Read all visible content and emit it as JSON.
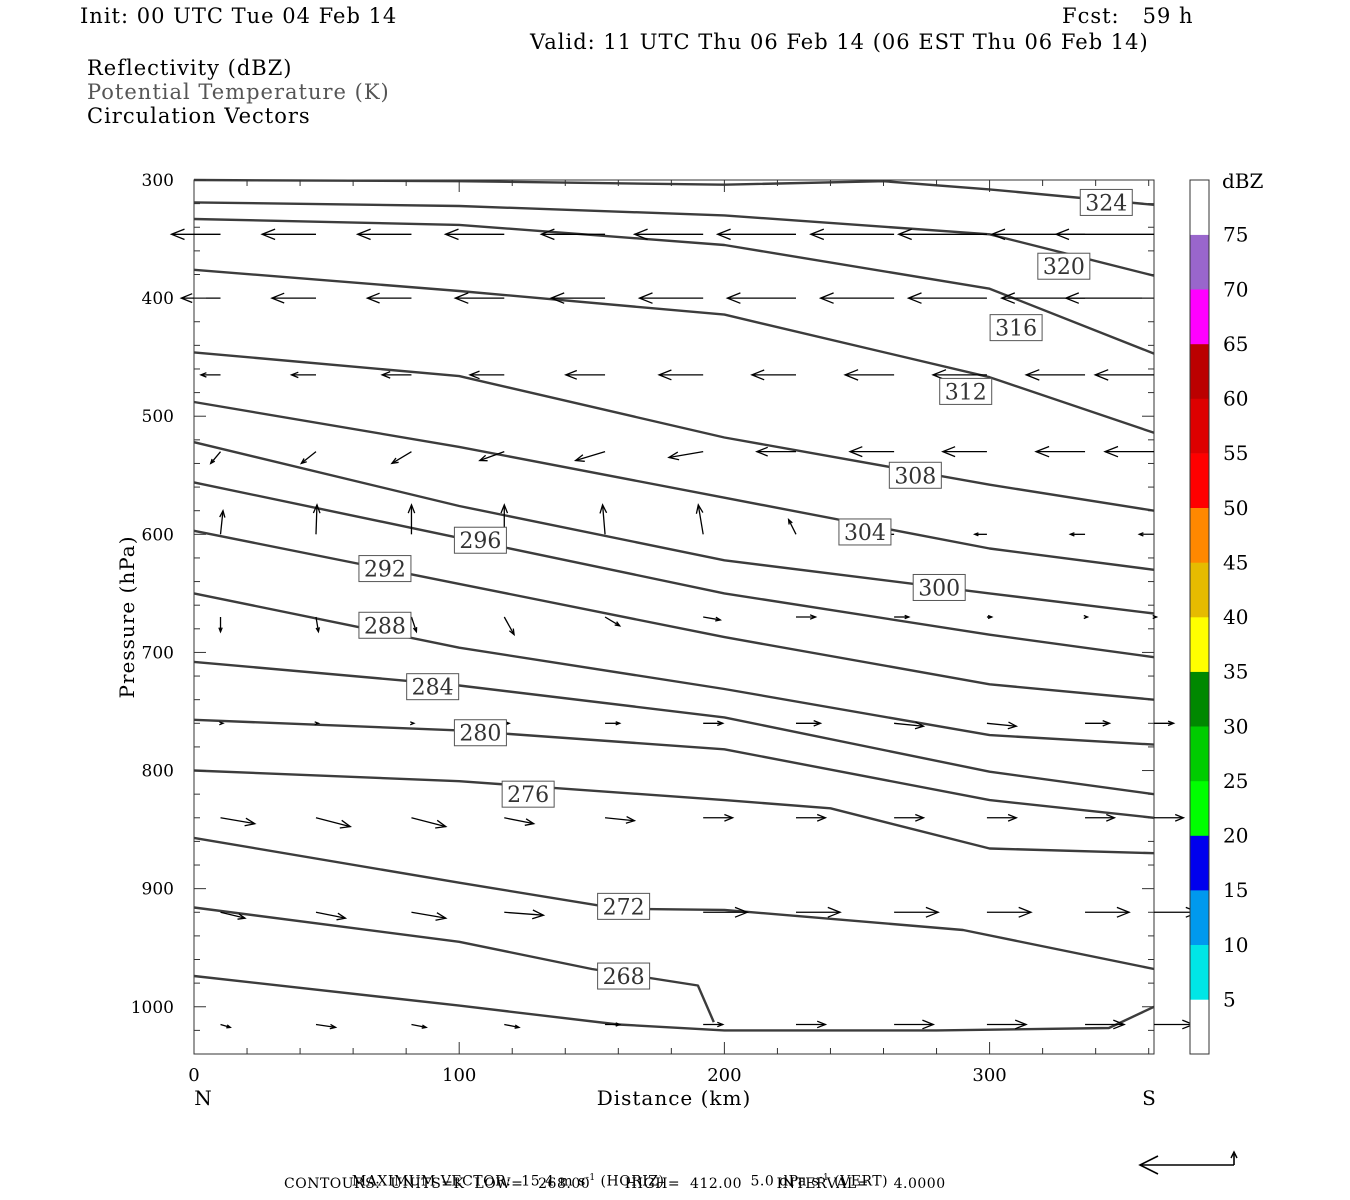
{
  "header": {
    "init": "Init: 00 UTC Tue 04 Feb 14",
    "fcst": "Fcst:   59 h",
    "valid": "Valid: 11 UTC Thu 06 Feb 14 (06 EST Thu 06 Feb 14)",
    "fields": [
      "Reflectivity (dBZ)",
      "Potential Temperature (K)",
      "Circulation Vectors"
    ]
  },
  "footer": {
    "max_vector": "MAXIMUM VECTOR:  15.4 m s",
    "max_vector_sup": "-1",
    "horiz": " (HORIZ)",
    "vert_value": "5.0 dPa s",
    "vert_sup": "-1",
    "vert": " (VERT)",
    "contours": "CONTOURS:  UNITS=K  LOW=   268.00       HIGH=  412.00       INTERVAL=     4.0000"
  },
  "chart_data": {
    "type": "cross-section",
    "xlabel": "Distance (km)",
    "ylabel": "Pressure (hPa)",
    "x_left_label": "N",
    "x_right_label": "S",
    "xlim": [
      0,
      362
    ],
    "ylim": [
      1040,
      300
    ],
    "xticks": [
      0,
      100,
      200,
      300
    ],
    "yticks": [
      300,
      400,
      500,
      600,
      700,
      800,
      900,
      1000
    ],
    "colorbar": {
      "title": "dBZ",
      "levels": [
        5,
        10,
        15,
        20,
        25,
        30,
        35,
        40,
        45,
        50,
        55,
        60,
        65,
        70,
        75
      ],
      "colors": [
        "#ffffff",
        "#00e6e6",
        "#0099ee",
        "#0000ee",
        "#00ff00",
        "#00cc00",
        "#008800",
        "#ffff00",
        "#e6bb00",
        "#ff8800",
        "#ff0000",
        "#dd0000",
        "#bb0000",
        "#ff00ff",
        "#9966cc",
        "#ffffff"
      ]
    },
    "isentropes": [
      {
        "label": "324",
        "points": [
          [
            0,
            300
          ],
          [
            100,
            301
          ],
          [
            200,
            304
          ],
          [
            260,
            301
          ],
          [
            300,
            308
          ],
          [
            362,
            321
          ]
        ],
        "label_at": [
          344,
          319
        ]
      },
      {
        "label": "320",
        "points": [
          [
            0,
            319
          ],
          [
            100,
            322
          ],
          [
            200,
            330
          ],
          [
            300,
            346
          ],
          [
            362,
            381
          ]
        ],
        "label_at": [
          328,
          373
        ]
      },
      {
        "label": "316",
        "points": [
          [
            0,
            333
          ],
          [
            100,
            338
          ],
          [
            200,
            355
          ],
          [
            300,
            392
          ],
          [
            362,
            447
          ]
        ],
        "label_at": [
          310,
          425
        ]
      },
      {
        "label": "312",
        "points": [
          [
            0,
            376
          ],
          [
            100,
            394
          ],
          [
            200,
            414
          ],
          [
            300,
            467
          ],
          [
            362,
            514
          ]
        ],
        "label_at": [
          291,
          479
        ]
      },
      {
        "label": "308",
        "points": [
          [
            0,
            446
          ],
          [
            100,
            466
          ],
          [
            200,
            518
          ],
          [
            300,
            558
          ],
          [
            362,
            580
          ]
        ],
        "label_at": [
          272,
          550
        ]
      },
      {
        "label": "304",
        "points": [
          [
            0,
            488
          ],
          [
            100,
            526
          ],
          [
            200,
            569
          ],
          [
            300,
            612
          ],
          [
            362,
            630
          ]
        ],
        "label_at": [
          253,
          598
        ]
      },
      {
        "label": "300",
        "points": [
          [
            0,
            522
          ],
          [
            100,
            576
          ],
          [
            200,
            622
          ],
          [
            300,
            650
          ],
          [
            362,
            667
          ]
        ],
        "label_at": [
          281,
          645
        ]
      },
      {
        "label": "296",
        "points": [
          [
            0,
            556
          ],
          [
            100,
            603
          ],
          [
            200,
            650
          ],
          [
            300,
            685
          ],
          [
            362,
            704
          ]
        ],
        "label_at": [
          108,
          605
        ]
      },
      {
        "label": "292",
        "points": [
          [
            0,
            597
          ],
          [
            100,
            642
          ],
          [
            200,
            687
          ],
          [
            300,
            727
          ],
          [
            362,
            740
          ]
        ],
        "label_at": [
          72,
          629
        ]
      },
      {
        "label": "288",
        "points": [
          [
            0,
            650
          ],
          [
            100,
            696
          ],
          [
            200,
            731
          ],
          [
            300,
            770
          ],
          [
            362,
            778
          ]
        ],
        "label_at": [
          72,
          677
        ]
      },
      {
        "label": "284",
        "points": [
          [
            0,
            708
          ],
          [
            100,
            728
          ],
          [
            200,
            755
          ],
          [
            300,
            801
          ],
          [
            362,
            820
          ]
        ],
        "label_at": [
          90,
          729
        ]
      },
      {
        "label": "280",
        "points": [
          [
            0,
            757
          ],
          [
            100,
            766
          ],
          [
            200,
            782
          ],
          [
            300,
            825
          ],
          [
            362,
            840
          ]
        ],
        "label_at": [
          108,
          768
        ]
      },
      {
        "label": "276",
        "points": [
          [
            0,
            800
          ],
          [
            100,
            809
          ],
          [
            200,
            825
          ],
          [
            240,
            832
          ],
          [
            300,
            866
          ],
          [
            362,
            870
          ]
        ],
        "label_at": [
          126,
          820
        ]
      },
      {
        "label": "272",
        "points": [
          [
            0,
            857
          ],
          [
            100,
            895
          ],
          [
            160,
            917
          ],
          [
            200,
            918
          ],
          [
            290,
            935
          ],
          [
            362,
            968
          ]
        ],
        "label_at": [
          162,
          915
        ]
      },
      {
        "label": "268",
        "points": [
          [
            0,
            916
          ],
          [
            100,
            945
          ],
          [
            150,
            968
          ],
          [
            190,
            982
          ],
          [
            196,
            1013
          ]
        ],
        "label_at": [
          162,
          974
        ]
      },
      {
        "label": "",
        "points": [
          [
            0,
            974
          ],
          [
            100,
            999
          ],
          [
            160,
            1015
          ],
          [
            200,
            1020
          ],
          [
            280,
            1020
          ],
          [
            345,
            1018
          ],
          [
            362,
            1000
          ]
        ],
        "label_at": null
      }
    ],
    "vectors": [
      {
        "p": 346,
        "x": [
          10,
          46,
          82,
          117,
          155,
          192,
          227,
          264,
          299,
          336,
          362
        ],
        "u": [
          -10,
          -11,
          -11,
          -12,
          -13,
          -14,
          -16,
          -17,
          -18,
          -19,
          -20
        ],
        "v": [
          0,
          0,
          0,
          0,
          0,
          0,
          0,
          0,
          0,
          0,
          0
        ]
      },
      {
        "p": 400,
        "x": [
          10,
          46,
          82,
          117,
          155,
          192,
          227,
          264,
          299,
          336,
          362
        ],
        "u": [
          -8,
          -9,
          -9,
          -10,
          -11,
          -13,
          -14,
          -15,
          -16,
          -17,
          -18
        ],
        "v": [
          0,
          0,
          0,
          0,
          0,
          0,
          0,
          0,
          0,
          0,
          0
        ]
      },
      {
        "p": 465,
        "x": [
          10,
          46,
          82,
          117,
          155,
          192,
          227,
          264,
          299,
          336,
          362
        ],
        "u": [
          -4,
          -5,
          -6,
          -7,
          -8,
          -9,
          -9,
          -10,
          -11,
          -12,
          -12
        ],
        "v": [
          0,
          0,
          0,
          0,
          0,
          0,
          0,
          0,
          0,
          0,
          0
        ]
      },
      {
        "p": 530,
        "x": [
          10,
          46,
          82,
          117,
          155,
          192,
          227,
          264,
          299,
          336,
          362
        ],
        "u": [
          -2,
          -3,
          -4,
          -5,
          -6,
          -7,
          -8,
          -9,
          -9,
          -10,
          -10
        ],
        "v": [
          -0.4,
          -0.4,
          -0.4,
          -0.3,
          -0.3,
          -0.2,
          0,
          0,
          0,
          0,
          0
        ]
      },
      {
        "p": 600,
        "x": [
          10,
          46,
          82,
          117,
          155,
          192,
          227,
          264,
          299,
          336,
          362
        ],
        "u": [
          0.5,
          0.2,
          0,
          0,
          -0.5,
          -1,
          -1.5,
          -2,
          -2.5,
          -3,
          -3
        ],
        "v": [
          0.8,
          1,
          1,
          1,
          1,
          1,
          0.5,
          0,
          0,
          0,
          0
        ]
      },
      {
        "p": 670,
        "x": [
          10,
          46,
          82,
          117,
          155,
          192,
          227,
          264,
          299,
          336,
          362
        ],
        "u": [
          0,
          0.5,
          1,
          2,
          3,
          3.5,
          4,
          3,
          1,
          0.5,
          0.5
        ],
        "v": [
          -0.5,
          -0.5,
          -0.5,
          -0.6,
          -0.3,
          -0.1,
          0,
          0,
          0,
          0,
          0
        ]
      },
      {
        "p": 760,
        "x": [
          10,
          46,
          82,
          117,
          155,
          192,
          227,
          264,
          299,
          336,
          362
        ],
        "u": [
          0.5,
          0.5,
          0.5,
          1,
          3,
          4,
          5,
          6,
          6,
          5,
          4
        ],
        "v": [
          0,
          0,
          0,
          0,
          0,
          0,
          0,
          -0.1,
          -0.1,
          0,
          0
        ]
      },
      {
        "p": 840,
        "x": [
          10,
          46,
          82,
          117,
          155,
          192,
          227,
          264,
          299,
          336,
          362
        ],
        "u": [
          7,
          7,
          7,
          6,
          6,
          6,
          6,
          6,
          6,
          6,
          6
        ],
        "v": [
          -0.2,
          -0.3,
          -0.3,
          -0.2,
          -0.1,
          0,
          0,
          0,
          0,
          0,
          0
        ]
      },
      {
        "p": 920,
        "x": [
          10,
          46,
          82,
          117,
          155,
          192,
          227,
          264,
          299,
          336,
          362
        ],
        "u": [
          5,
          6,
          7,
          8,
          8,
          9,
          9,
          9,
          9,
          9,
          9
        ],
        "v": [
          -0.2,
          -0.2,
          -0.2,
          -0.1,
          0,
          0,
          0,
          0,
          0,
          0,
          0
        ]
      },
      {
        "p": 1015,
        "x": [
          10,
          46,
          82,
          117,
          155,
          192,
          227,
          264,
          299,
          336,
          362
        ],
        "u": [
          2,
          4,
          3,
          3,
          3,
          4,
          6,
          8,
          8,
          8,
          8
        ],
        "v": [
          -0.1,
          -0.1,
          -0.1,
          -0.1,
          0,
          0,
          0,
          0,
          0,
          0,
          0
        ]
      }
    ]
  }
}
